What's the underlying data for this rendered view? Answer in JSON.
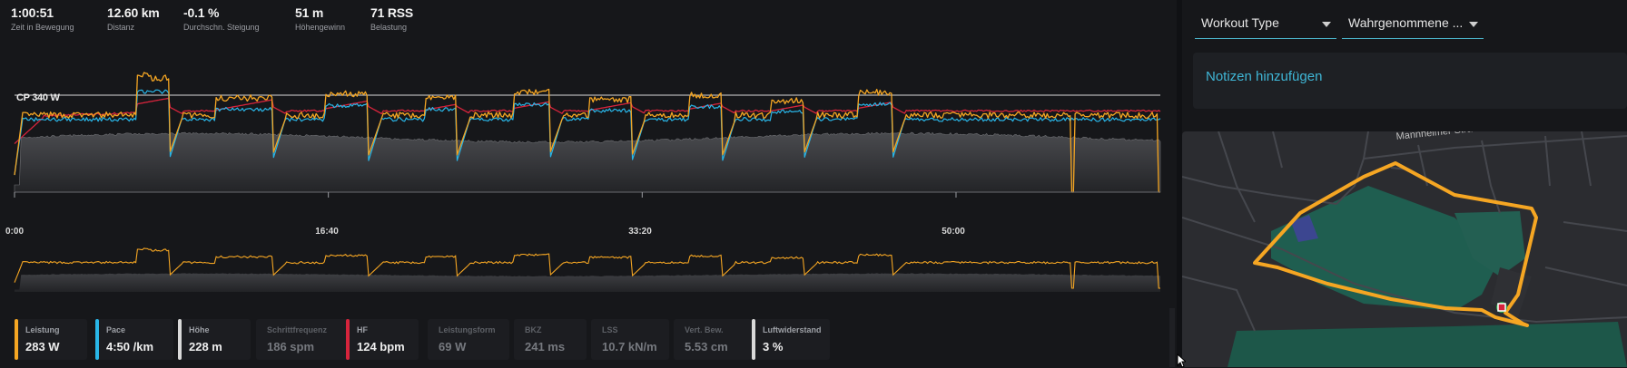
{
  "summary": [
    {
      "value": "1:00:51",
      "label": "Zeit in Bewegung"
    },
    {
      "value": "12.60 km",
      "label": "Distanz"
    },
    {
      "value": "-0.1 %",
      "label": "Durchschn. Steigung"
    },
    {
      "value": "51 m",
      "label": "Höhengewinn"
    },
    {
      "value": "71 RSS",
      "label": "Belastung"
    }
  ],
  "chart": {
    "ftp_label": "CP 340 W",
    "x_ticks": [
      "0:00",
      "16:40",
      "33:20",
      "50:00"
    ]
  },
  "chart_data": {
    "type": "line",
    "x_label_unit": "time (m:ss)",
    "x_range_seconds": [
      0,
      3651
    ],
    "x_ticks": [
      "0:00",
      "16:40",
      "33:20",
      "50:00"
    ],
    "reference_lines": [
      {
        "name": "CP",
        "value": 340,
        "unit": "W"
      }
    ],
    "grid": false,
    "legend": "bottom (metric cards)",
    "intervals_estimated": [
      {
        "start_min": 6.5,
        "end_min": 8.2,
        "power_w": 400
      },
      {
        "start_min": 10.7,
        "end_min": 13.7,
        "power_w": 330
      },
      {
        "start_min": 16.5,
        "end_min": 18.8,
        "power_w": 345
      },
      {
        "start_min": 21.8,
        "end_min": 23.5,
        "power_w": 330
      },
      {
        "start_min": 26.5,
        "end_min": 28.4,
        "power_w": 350
      },
      {
        "start_min": 30.5,
        "end_min": 32.8,
        "power_w": 325
      },
      {
        "start_min": 35.8,
        "end_min": 37.6,
        "power_w": 340
      },
      {
        "start_min": 40.2,
        "end_min": 41.9,
        "power_w": 320
      },
      {
        "start_min": 44.8,
        "end_min": 46.6,
        "power_w": 350
      }
    ],
    "series": [
      {
        "name": "Leistung",
        "color": "#f5a623",
        "baseline": 270,
        "unit": "W"
      },
      {
        "name": "Pace",
        "color": "#29b6e8",
        "unit": "/km"
      },
      {
        "name": "HF",
        "color": "#d6243c",
        "unit": "bpm"
      },
      {
        "name": "Höhe",
        "color": "#cfcfcf",
        "unit": "m"
      }
    ]
  },
  "metrics": [
    {
      "label": "Leistung",
      "value": "283 W",
      "color": "#f5a623",
      "active": true
    },
    {
      "label": "Pace",
      "value": "4:50 /km",
      "color": "#29b6e8",
      "active": true
    },
    {
      "label": "Höhe",
      "value": "228 m",
      "color": "#d9d9d9",
      "active": true
    },
    {
      "label": "Schrittfrequenz",
      "value": "186 spm",
      "color": "",
      "active": false
    },
    {
      "label": "HF",
      "value": "124 bpm",
      "color": "#d6243c",
      "active": true
    },
    {
      "label": "Leistungsform",
      "value": "69 W",
      "color": "",
      "active": false
    },
    {
      "label": "BKZ",
      "value": "241 ms",
      "color": "",
      "active": false
    },
    {
      "label": "LSS",
      "value": "10.7 kN/m",
      "color": "",
      "active": false
    },
    {
      "label": "Vert. Bew.",
      "value": "5.53 cm",
      "color": "",
      "active": false
    },
    {
      "label": "Luftwiderstand",
      "value": "3 %",
      "color": "#d9d9d9",
      "active": true
    }
  ],
  "sidebar": {
    "workout_type": "Workout Type",
    "perceived": "Wahrgenommene ...",
    "notes_link": "Notizen hinzufügen"
  },
  "map": {
    "street_label": "Mannheimer Straße",
    "route_color": "#f5a623"
  }
}
